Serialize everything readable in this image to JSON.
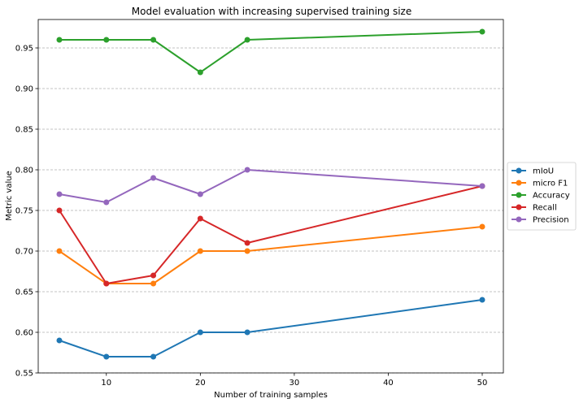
{
  "chart_data": {
    "type": "line",
    "title": "Model evaluation with increasing supervised training size",
    "xlabel": "Number of training samples",
    "ylabel": "Metric value",
    "x": [
      5,
      10,
      15,
      20,
      25,
      50
    ],
    "xlim": [
      2.75,
      52.25
    ],
    "ylim": [
      0.55,
      0.985
    ],
    "xticks": [
      10,
      20,
      30,
      40,
      50
    ],
    "yticks": [
      0.55,
      0.6,
      0.65,
      0.7,
      0.75,
      0.8,
      0.85,
      0.9,
      0.95
    ],
    "ytick_labels": [
      "0.55",
      "0.60",
      "0.65",
      "0.70",
      "0.75",
      "0.80",
      "0.85",
      "0.90",
      "0.95"
    ],
    "grid": "horizontal dashed",
    "legend_position": "outside-right",
    "series": [
      {
        "name": "mIoU",
        "color": "#1f77b4",
        "values": [
          0.59,
          0.57,
          0.57,
          0.6,
          0.6,
          0.64
        ]
      },
      {
        "name": "micro F1",
        "color": "#ff7f0e",
        "values": [
          0.7,
          0.66,
          0.66,
          0.7,
          0.7,
          0.73
        ]
      },
      {
        "name": "Accuracy",
        "color": "#2ca02c",
        "values": [
          0.96,
          0.96,
          0.96,
          0.92,
          0.96,
          0.97
        ]
      },
      {
        "name": "Recall",
        "color": "#d62728",
        "values": [
          0.75,
          0.66,
          0.67,
          0.74,
          0.71,
          0.78
        ]
      },
      {
        "name": "Precision",
        "color": "#9467bd",
        "values": [
          0.77,
          0.76,
          0.79,
          0.77,
          0.8,
          0.78
        ]
      }
    ]
  }
}
